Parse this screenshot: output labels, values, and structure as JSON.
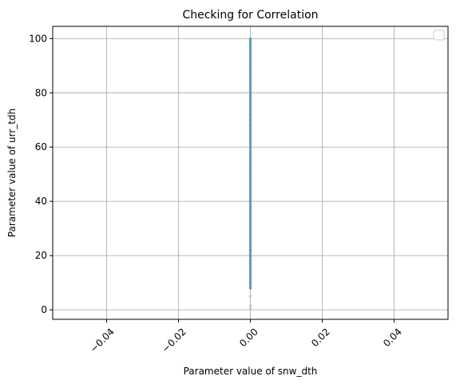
{
  "chart_data": {
    "type": "scatter",
    "title": "Checking for Correlation",
    "xlabel": "Parameter value of snw_dth",
    "ylabel": "Parameter value of urr_tdh",
    "xlim": [
      -0.055,
      0.055
    ],
    "ylim": [
      -3.5,
      104.5
    ],
    "xticks": [
      -0.04,
      -0.02,
      0.0,
      0.02,
      0.04
    ],
    "xtick_labels": [
      "−0.04",
      "−0.02",
      "0.00",
      "0.02",
      "0.04"
    ],
    "yticks": [
      0,
      20,
      40,
      60,
      80,
      100
    ],
    "ytick_labels": [
      "0",
      "20",
      "40",
      "60",
      "80",
      "100"
    ],
    "grid": true,
    "legend": {
      "placement": "top-right",
      "entries": []
    },
    "xtick_rotation": 45,
    "series": [
      {
        "color": "#5b9bb5",
        "x_constant": 0.0,
        "y_dense_range": [
          8,
          100
        ],
        "y": [
          0.5,
          1.5,
          5,
          8,
          10,
          12,
          15,
          18,
          20,
          22,
          25,
          28,
          30,
          32,
          35,
          38,
          40,
          42,
          45,
          48,
          50,
          52,
          55,
          58,
          60,
          62,
          65,
          68,
          70,
          72,
          75,
          78,
          80,
          82,
          85,
          88,
          90,
          92,
          95,
          98,
          99.5
        ]
      }
    ],
    "colors": {
      "points": "#5b9bb5",
      "outliers": "#b0c4cc",
      "grid": "#b0b0b0",
      "axes": "#000000"
    }
  }
}
